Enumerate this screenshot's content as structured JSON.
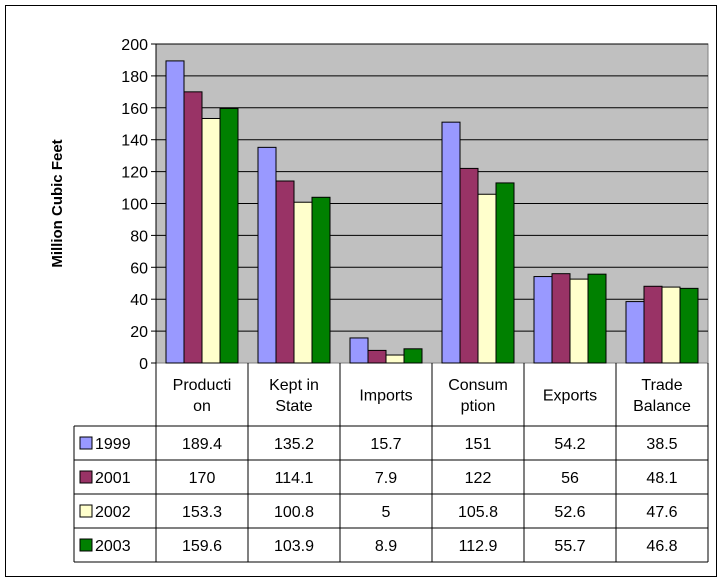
{
  "chart_data": {
    "type": "bar",
    "ylabel": "Million Cubic Feet",
    "ylim": [
      0,
      200
    ],
    "ytick_step": 20,
    "grid": true,
    "categories": [
      [
        "Producti",
        "on"
      ],
      [
        "Kept in",
        "State"
      ],
      [
        "Imports"
      ],
      [
        "Consum",
        "ption"
      ],
      [
        "Exports"
      ],
      [
        "Trade",
        "Balance"
      ]
    ],
    "series": [
      {
        "name": "1999",
        "color": "#9999ff",
        "values": [
          189.4,
          135.2,
          15.7,
          151,
          54.2,
          38.5
        ],
        "labels": [
          "189.4",
          "135.2",
          "15.7",
          "151",
          "54.2",
          "38.5"
        ]
      },
      {
        "name": "2001",
        "color": "#993366",
        "values": [
          170,
          114.1,
          7.9,
          122,
          56,
          48.1
        ],
        "labels": [
          "170",
          "114.1",
          "7.9",
          "122",
          "56",
          "48.1"
        ]
      },
      {
        "name": "2002",
        "color": "#ffffcc",
        "values": [
          153.3,
          100.8,
          5,
          105.8,
          52.6,
          47.6
        ],
        "labels": [
          "153.3",
          "100.8",
          "5",
          "105.8",
          "52.6",
          "47.6"
        ]
      },
      {
        "name": "2003",
        "color": "#008000",
        "values": [
          159.6,
          103.9,
          8.9,
          112.9,
          55.7,
          46.8
        ],
        "labels": [
          "159.6",
          "103.9",
          "8.9",
          "112.9",
          "55.7",
          "46.8"
        ]
      }
    ],
    "plot_background": "#c0c0c0"
  }
}
